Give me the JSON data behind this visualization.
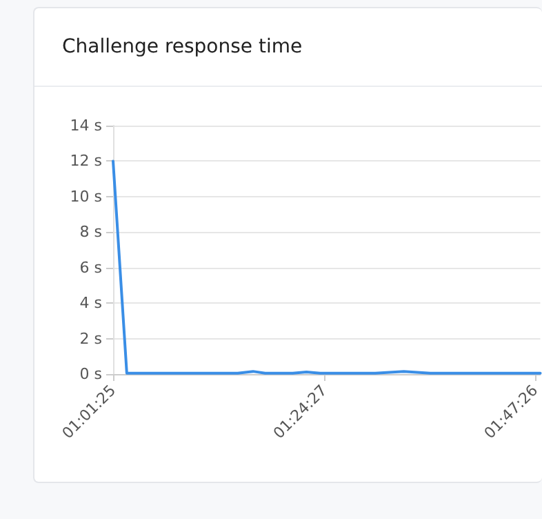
{
  "chart_data": {
    "type": "line",
    "title": "Challenge response time",
    "series": [
      {
        "color": "#3a8ee6",
        "x": [
          1.02361,
          1.0485,
          1.1,
          1.15,
          1.2,
          1.25,
          1.278,
          1.3,
          1.35,
          1.375,
          1.4,
          1.45,
          1.5,
          1.552,
          1.6,
          1.65,
          1.7,
          1.75,
          1.8
        ],
        "values": [
          12,
          0.05,
          0.05,
          0.05,
          0.05,
          0.05,
          0.15,
          0.05,
          0.05,
          0.12,
          0.05,
          0.05,
          0.05,
          0.15,
          0.05,
          0.05,
          0.05,
          0.05,
          0.05
        ]
      }
    ],
    "xlim": [
      1.02361,
      1.8
    ],
    "xticks": [
      {
        "value": 1.02361,
        "label": "01:01:25"
      },
      {
        "value": 1.4075,
        "label": "01:24:27"
      },
      {
        "value": 1.79056,
        "label": "01:47:26"
      }
    ],
    "ylim": [
      0,
      14
    ],
    "yticks": [
      {
        "value": 0,
        "label": "0 s"
      },
      {
        "value": 2,
        "label": "2 s"
      },
      {
        "value": 4,
        "label": "4 s"
      },
      {
        "value": 6,
        "label": "6 s"
      },
      {
        "value": 8,
        "label": "8 s"
      },
      {
        "value": 10,
        "label": "10 s"
      },
      {
        "value": 12,
        "label": "12 s"
      },
      {
        "value": 14,
        "label": "14 s"
      }
    ],
    "grid": "y",
    "marker": "none",
    "line_style": "solid"
  }
}
